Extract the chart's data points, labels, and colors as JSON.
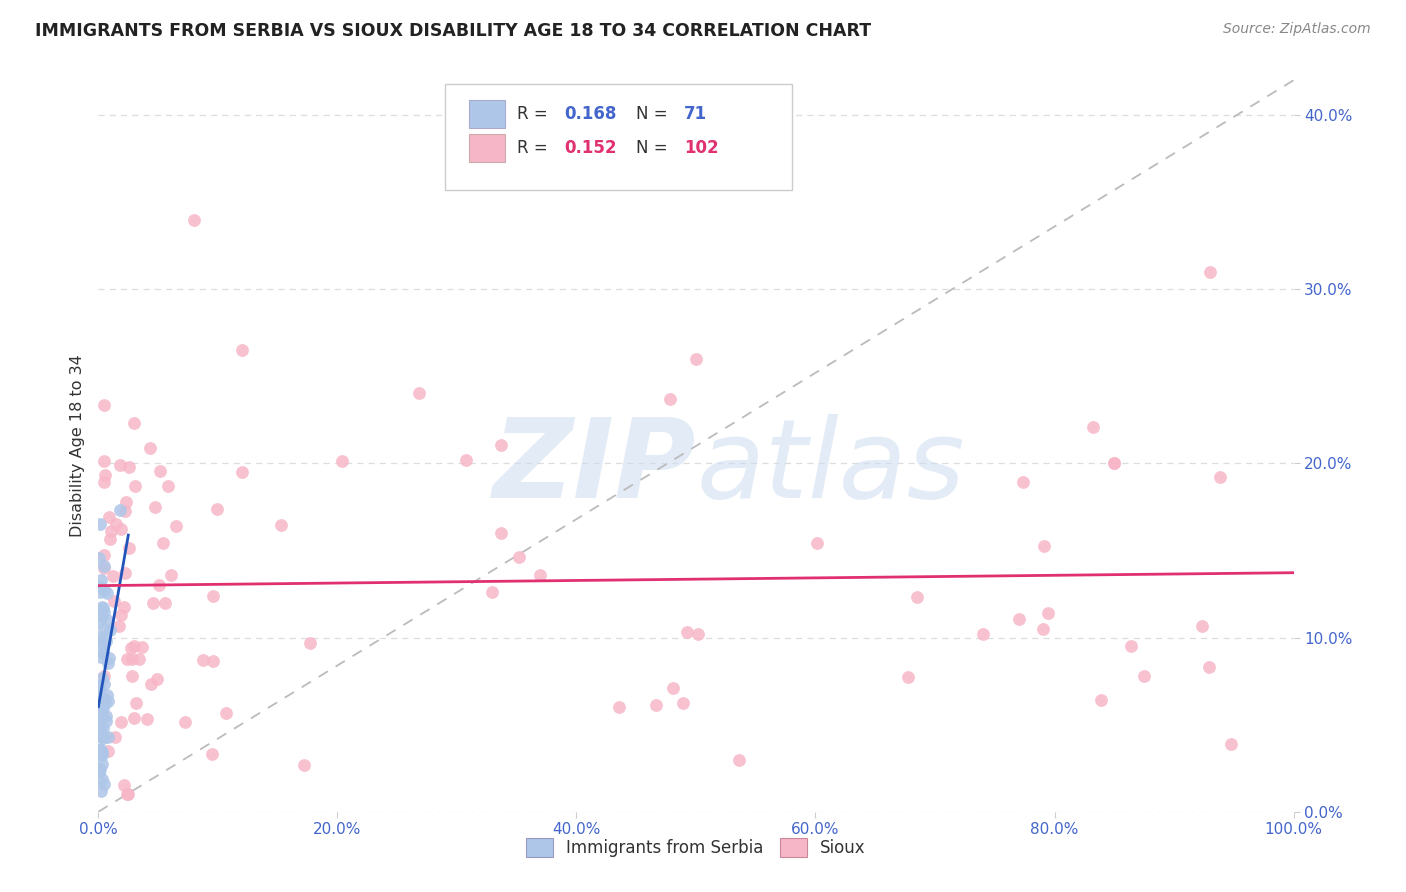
{
  "title": "IMMIGRANTS FROM SERBIA VS SIOUX DISABILITY AGE 18 TO 34 CORRELATION CHART",
  "source": "Source: ZipAtlas.com",
  "ylabel": "Disability Age 18 to 34",
  "xlim": [
    0.0,
    1.0
  ],
  "ylim": [
    0.0,
    0.42
  ],
  "serbia_R": 0.168,
  "serbia_N": 71,
  "sioux_R": 0.152,
  "sioux_N": 102,
  "serbia_color": "#aec6e8",
  "sioux_color": "#f7b6c8",
  "serbia_line_color": "#2255bb",
  "sioux_line_color": "#e03070",
  "reference_line_color": "#bbbbbb",
  "watermark_color": "#ccdcf0",
  "background_color": "#ffffff",
  "grid_color": "#dddddd",
  "title_color": "#222222",
  "tick_color": "#4466cc",
  "text_color": "#333333",
  "legend_r_color": "#222222",
  "legend_n_color": "#4466cc"
}
